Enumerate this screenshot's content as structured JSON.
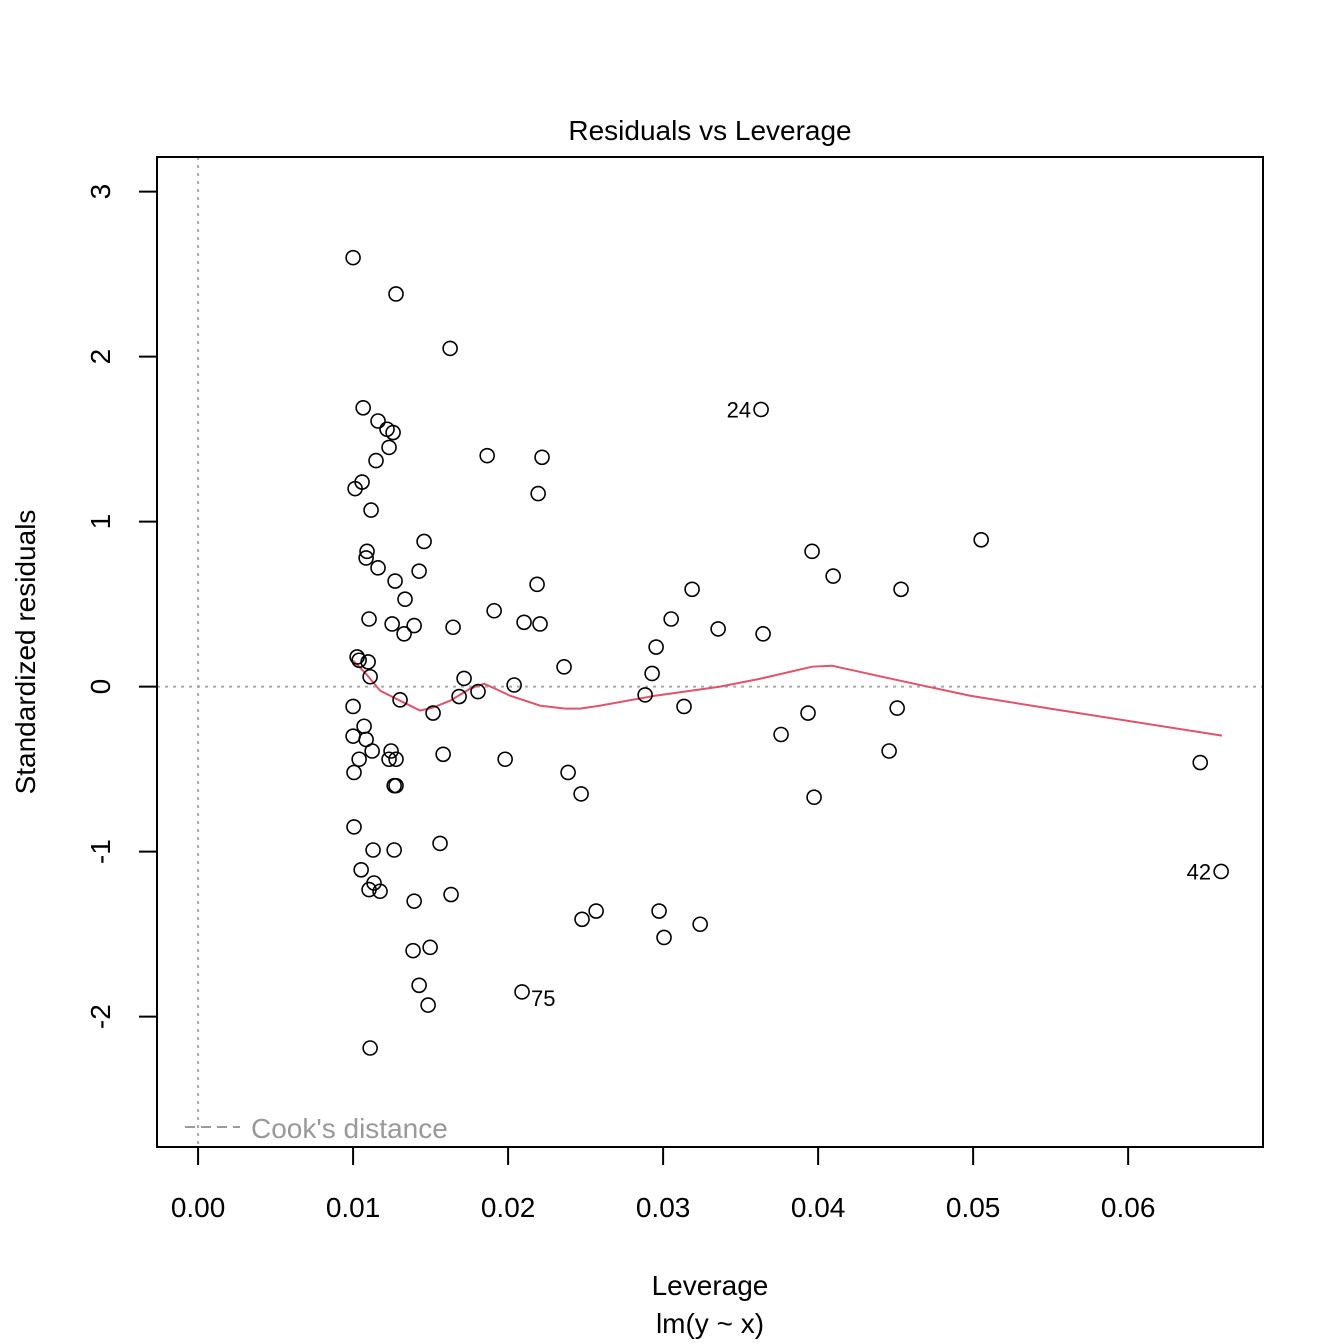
{
  "chart_data": {
    "type": "scatter",
    "title": "Residuals vs Leverage",
    "xlabel": "Leverage",
    "sublabel": "lm(y ~ x)",
    "ylabel": "Standardized residuals",
    "xlim": [
      -0.00265,
      0.0687
    ],
    "ylim": [
      -2.79,
      3.21
    ],
    "xticks": [
      "0.00",
      "0.01",
      "0.02",
      "0.03",
      "0.04",
      "0.05",
      "0.06"
    ],
    "xtick_values": [
      0,
      0.01,
      0.02,
      0.03,
      0.04,
      0.05,
      0.06
    ],
    "yticks": [
      "-2",
      "-1",
      "0",
      "1",
      "2",
      "3"
    ],
    "ytick_values": [
      -2,
      -1,
      0,
      1,
      2,
      3
    ],
    "grid": false,
    "reference_lines": {
      "h": 0,
      "v": 0,
      "style": "dotted",
      "color": "#aaaaaa"
    },
    "legend": {
      "label": "Cook's distance",
      "placement": "bottom-left",
      "color": "#999999"
    },
    "smoother_color": "#DF536B",
    "points": [
      [
        0.01,
        2.6
      ],
      [
        0.01277,
        2.38
      ],
      [
        0.01626,
        2.05
      ],
      [
        0.03632,
        1.68
      ],
      [
        0.01065,
        1.69
      ],
      [
        0.01161,
        1.61
      ],
      [
        0.01219,
        1.56
      ],
      [
        0.01258,
        1.54
      ],
      [
        0.01232,
        1.45
      ],
      [
        0.01148,
        1.37
      ],
      [
        0.01865,
        1.4
      ],
      [
        0.02219,
        1.39
      ],
      [
        0.01058,
        1.24
      ],
      [
        0.01013,
        1.2
      ],
      [
        0.02194,
        1.17
      ],
      [
        0.01116,
        1.07
      ],
      [
        0.01458,
        0.88
      ],
      [
        0.05052,
        0.89
      ],
      [
        0.03961,
        0.82
      ],
      [
        0.0109,
        0.82
      ],
      [
        0.01084,
        0.78
      ],
      [
        0.01161,
        0.72
      ],
      [
        0.01426,
        0.7
      ],
      [
        0.01271,
        0.64
      ],
      [
        0.02187,
        0.62
      ],
      [
        0.04097,
        0.67
      ],
      [
        0.03187,
        0.59
      ],
      [
        0.04535,
        0.59
      ],
      [
        0.01335,
        0.53
      ],
      [
        0.0191,
        0.46
      ],
      [
        0.01103,
        0.41
      ],
      [
        0.03052,
        0.41
      ],
      [
        0.01252,
        0.38
      ],
      [
        0.01394,
        0.37
      ],
      [
        0.02103,
        0.39
      ],
      [
        0.02206,
        0.38
      ],
      [
        0.01645,
        0.36
      ],
      [
        0.03355,
        0.35
      ],
      [
        0.03645,
        0.32
      ],
      [
        0.01329,
        0.32
      ],
      [
        0.02955,
        0.24
      ],
      [
        0.01026,
        0.18
      ],
      [
        0.01039,
        0.16
      ],
      [
        0.01097,
        0.15
      ],
      [
        0.02361,
        0.12
      ],
      [
        0.02929,
        0.08
      ],
      [
        0.0111,
        0.06
      ],
      [
        0.01716,
        0.05
      ],
      [
        0.02039,
        0.01
      ],
      [
        0.01806,
        -0.03
      ],
      [
        0.01684,
        -0.06
      ],
      [
        0.02884,
        -0.05
      ],
      [
        0.01303,
        -0.08
      ],
      [
        0.01,
        -0.12
      ],
      [
        0.03135,
        -0.12
      ],
      [
        0.01516,
        -0.16
      ],
      [
        0.03935,
        -0.16
      ],
      [
        0.0451,
        -0.13
      ],
      [
        0.01071,
        -0.24
      ],
      [
        0.01,
        -0.3
      ],
      [
        0.01084,
        -0.32
      ],
      [
        0.03761,
        -0.29
      ],
      [
        0.01123,
        -0.39
      ],
      [
        0.01245,
        -0.39
      ],
      [
        0.01581,
        -0.41
      ],
      [
        0.04458,
        -0.39
      ],
      [
        0.01039,
        -0.44
      ],
      [
        0.01232,
        -0.44
      ],
      [
        0.01277,
        -0.44
      ],
      [
        0.01981,
        -0.44
      ],
      [
        0.06465,
        -0.46
      ],
      [
        0.01006,
        -0.52
      ],
      [
        0.02387,
        -0.52
      ],
      [
        0.01265,
        -0.6
      ],
      [
        0.01277,
        -0.6
      ],
      [
        0.02471,
        -0.65
      ],
      [
        0.03974,
        -0.67
      ],
      [
        0.01006,
        -0.85
      ],
      [
        0.01561,
        -0.95
      ],
      [
        0.01129,
        -0.99
      ],
      [
        0.01265,
        -0.99
      ],
      [
        0.01052,
        -1.11
      ],
      [
        0.066,
        -1.12
      ],
      [
        0.01135,
        -1.19
      ],
      [
        0.01103,
        -1.23
      ],
      [
        0.01174,
        -1.24
      ],
      [
        0.01632,
        -1.26
      ],
      [
        0.01394,
        -1.3
      ],
      [
        0.02568,
        -1.36
      ],
      [
        0.02974,
        -1.36
      ],
      [
        0.02477,
        -1.41
      ],
      [
        0.03239,
        -1.44
      ],
      [
        0.03006,
        -1.52
      ],
      [
        0.01387,
        -1.6
      ],
      [
        0.01497,
        -1.58
      ],
      [
        0.01426,
        -1.81
      ],
      [
        0.0209,
        -1.85
      ],
      [
        0.01484,
        -1.93
      ],
      [
        0.0111,
        -2.19
      ]
    ],
    "labeled_points": [
      {
        "label": "24",
        "x": 0.03632,
        "y": 1.68,
        "side": "left"
      },
      {
        "label": "42",
        "x": 0.066,
        "y": -1.12,
        "side": "left"
      },
      {
        "label": "75",
        "x": 0.0209,
        "y": -1.85,
        "side": "right"
      }
    ],
    "smoother": [
      [
        0.01,
        0.158
      ],
      [
        0.01077,
        0.085
      ],
      [
        0.01174,
        -0.024
      ],
      [
        0.01303,
        -0.085
      ],
      [
        0.01432,
        -0.145
      ],
      [
        0.01516,
        -0.127
      ],
      [
        0.01626,
        -0.085
      ],
      [
        0.01755,
        -0.012
      ],
      [
        0.01845,
        0.018
      ],
      [
        0.01916,
        -0.012
      ],
      [
        0.02013,
        -0.055
      ],
      [
        0.02206,
        -0.115
      ],
      [
        0.02368,
        -0.133
      ],
      [
        0.02465,
        -0.133
      ],
      [
        0.02594,
        -0.115
      ],
      [
        0.02948,
        -0.055
      ],
      [
        0.03368,
        0
      ],
      [
        0.03626,
        0.048
      ],
      [
        0.03961,
        0.121
      ],
      [
        0.0409,
        0.127
      ],
      [
        0.04529,
        0.036
      ],
      [
        0.04981,
        -0.055
      ],
      [
        0.05497,
        -0.133
      ],
      [
        0.06606,
        -0.297
      ]
    ]
  }
}
